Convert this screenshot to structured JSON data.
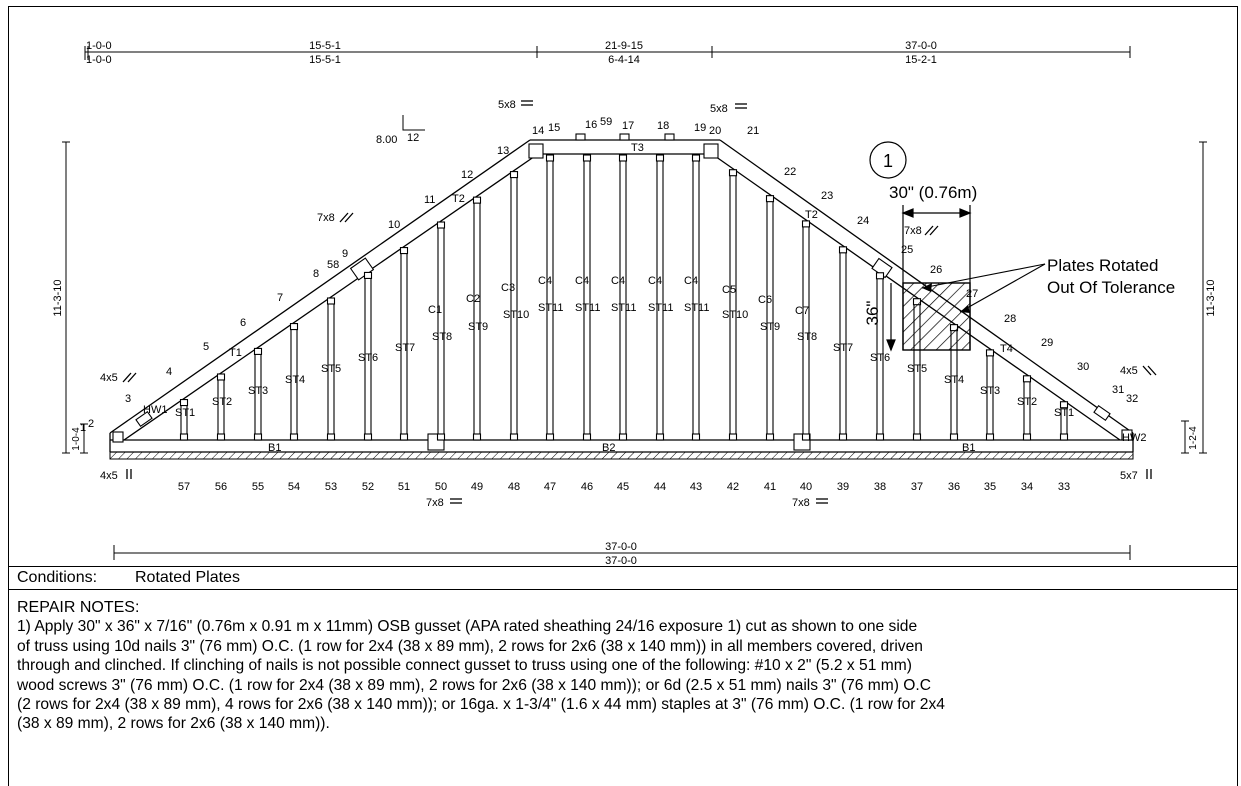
{
  "dimensions": {
    "top_left_a": "1-0-0",
    "top_left_b": "1-0-0",
    "top_seg1_cum": "15-5-1",
    "top_seg1_len": "15-5-1",
    "top_seg2_cum": "21-9-15",
    "top_seg2_len": "6-4-14",
    "top_seg3_cum": "37-0-0",
    "top_seg3_len": "15-2-1",
    "bottom_total_a": "37-0-0",
    "bottom_total_b": "37-0-0",
    "left_height": "11-3-10",
    "right_height": "11-3-10",
    "left_heel": "1-0-4",
    "right_heel": "1-2-4"
  },
  "pitch": {
    "rise": "8.00",
    "run": "12"
  },
  "plates": {
    "top_left": "5x8",
    "top_right": "5x8",
    "left_mid": "7x8",
    "right_mid": "7x8",
    "left_lower": "4x5",
    "right_lower": "4x5",
    "bottom_left_mid": "7x8",
    "bottom_right_mid": "7x8",
    "left_heel": "4x5",
    "right_heel": "5x7"
  },
  "members": {
    "T1": "T1",
    "T2": "T2",
    "T3": "T3",
    "T4": "T4",
    "B1": "B1",
    "B2": "B2",
    "HW1": "HW1",
    "HW2": "HW2",
    "webs_left": [
      "ST1",
      "ST2",
      "ST3",
      "ST4",
      "ST5",
      "ST6",
      "ST7",
      "ST8",
      "ST9",
      "ST10",
      "ST11",
      "ST11",
      "ST11",
      "ST11",
      "ST11"
    ],
    "webs_right": [
      "ST10",
      "ST9",
      "ST8",
      "ST7",
      "ST6",
      "ST5",
      "ST4",
      "ST3",
      "ST2",
      "ST1"
    ],
    "c_labels": [
      "C1",
      "C2",
      "C3",
      "C4",
      "C4",
      "C4",
      "C4",
      "C4",
      "C5",
      "C6",
      "C7"
    ]
  },
  "node_numbers": {
    "top_chord": [
      "1",
      "2",
      "3",
      "4",
      "5",
      "6",
      "7",
      "8",
      "58",
      "9",
      "10",
      "11",
      "12",
      "13",
      "14",
      "15",
      "16",
      "59",
      "17",
      "18",
      "19",
      "20",
      "21",
      "22",
      "23",
      "24",
      "25",
      "26",
      "27",
      "28",
      "29",
      "30",
      "31",
      "32"
    ],
    "bottom_chord": [
      "57",
      "56",
      "55",
      "54",
      "53",
      "52",
      "51",
      "50",
      "49",
      "48",
      "47",
      "46",
      "45",
      "44",
      "43",
      "42",
      "41",
      "40",
      "39",
      "38",
      "37",
      "36",
      "35",
      "34",
      "33"
    ]
  },
  "callout": {
    "number": "1",
    "width": "30\" (0.76m)",
    "height": "36\"",
    "label_line1": "Plates Rotated",
    "label_line2": "Out Of Tolerance"
  },
  "conditions": {
    "label": "Conditions:",
    "value": "Rotated Plates"
  },
  "repair_notes": {
    "heading": "REPAIR NOTES:",
    "body": "1) Apply 30\" x 36\" x 7/16\" (0.76m x 0.91 m x 11mm) OSB gusset (APA rated sheathing 24/16 exposure 1) cut as shown to one side\nof truss using 10d nails 3\" (76 mm) O.C. (1 row for 2x4  (38 x 89 mm), 2 rows for 2x6 (38 x 140 mm)) in all members covered, driven\nthrough and clinched.  If clinching of nails is not possible connect gusset to truss using one of the following: #10 x 2\" (5.2 x 51 mm)\nwood screws 3\" (76 mm) O.C. (1 row for 2x4 (38 x 89 mm), 2 rows for 2x6 (38 x 140 mm)); or 6d (2.5 x 51 mm) nails 3\" (76 mm) O.C\n(2 rows for 2x4 (38 x 89 mm), 4 rows for 2x6 (38 x 140 mm)); or 16ga. x 1-3/4\" (1.6 x 44 mm) staples at 3\" (76 mm) O.C. (1 row for 2x4\n(38 x 89 mm), 2 rows for 2x6 (38 x 140 mm))."
  }
}
